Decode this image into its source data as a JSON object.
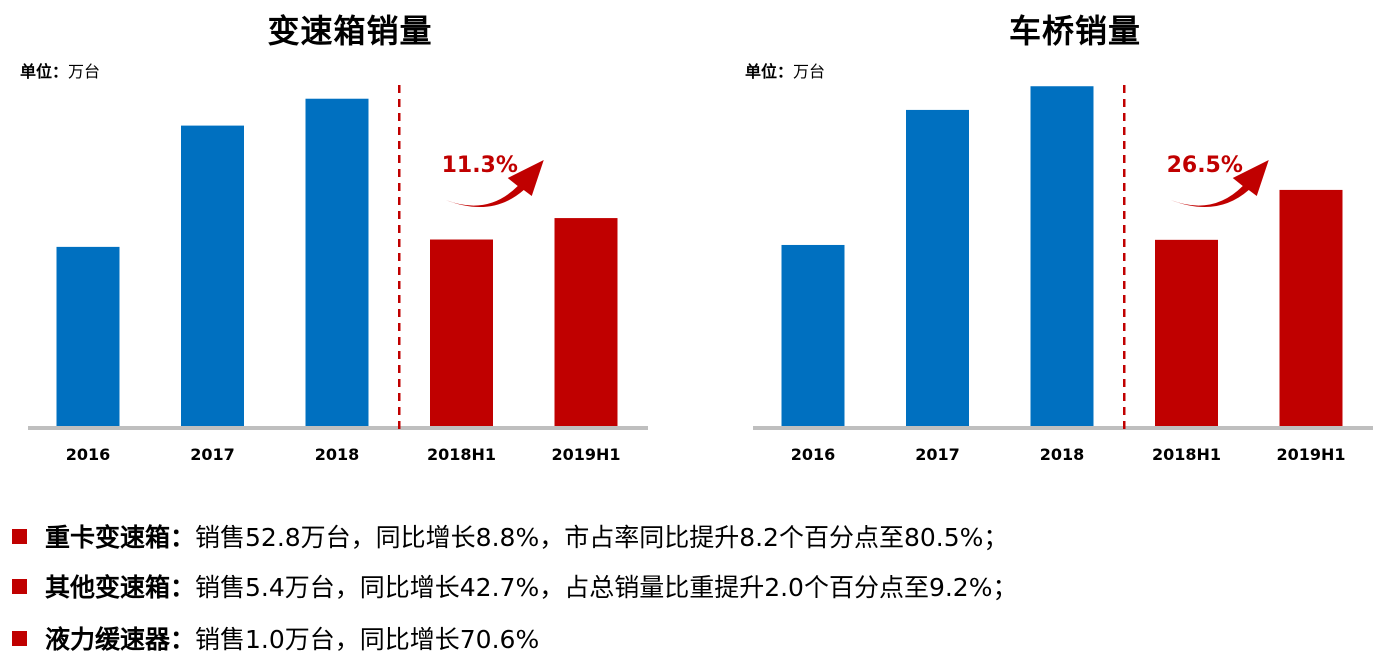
{
  "colors": {
    "historic": "#0070c0",
    "half_year": "#c00000",
    "axis": "#bfbfbf",
    "divider": "#c00000",
    "bullet": "#c00000"
  },
  "chart_data": [
    {
      "type": "bar",
      "title": "变速箱销量",
      "unit_label": "单位：",
      "unit_value": "万台",
      "categories": [
        "2016",
        "2017",
        "2018",
        "2018H1",
        "2019H1"
      ],
      "values": [
        56.6,
        94.5,
        102.9,
        58.9,
        65.6
      ],
      "bar_colors": [
        "#0070c0",
        "#0070c0",
        "#0070c0",
        "#c00000",
        "#c00000"
      ],
      "ylim": [
        0,
        125
      ],
      "growth_label": "11.3%",
      "divider_after_index": 2
    },
    {
      "type": "bar",
      "title": "车桥销量",
      "unit_label": "单位：",
      "unit_value": "万台",
      "categories": [
        "2016",
        "2017",
        "2018",
        "2018H1",
        "2019H1"
      ],
      "values": [
        57.2,
        99.4,
        106.8,
        58.8,
        74.4
      ],
      "bar_colors": [
        "#0070c0",
        "#0070c0",
        "#0070c0",
        "#c00000",
        "#c00000"
      ],
      "ylim": [
        0,
        125
      ],
      "growth_label": "26.5%",
      "divider_after_index": 2
    }
  ],
  "bullets": [
    {
      "label": "重卡变速箱：",
      "text": "销售52.8万台，同比增长8.8%，市占率同比提升8.2个百分点至80.5%；"
    },
    {
      "label": "其他变速箱：",
      "text": "销售5.4万台，同比增长42.7%，占总销量比重提升2.0个百分点至9.2%；"
    },
    {
      "label": "液力缓速器：",
      "text": "销售1.0万台，同比增长70.6%"
    }
  ]
}
